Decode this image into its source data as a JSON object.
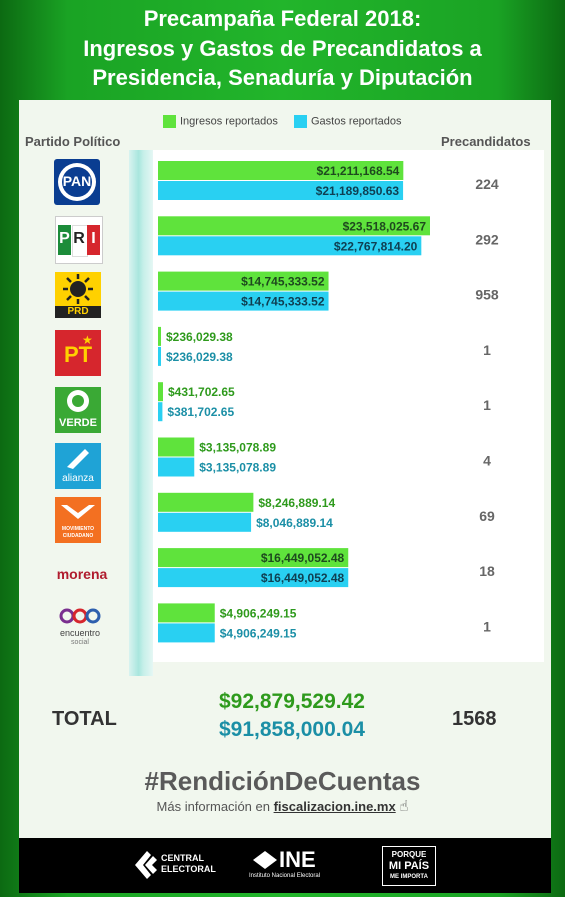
{
  "header": {
    "line1": "Precampaña Federal 2018:",
    "line2": "Ingresos y Gastos de Precandidatos a",
    "line3": "Presidencia, Senaduría y Diputación"
  },
  "legend": {
    "ingresos": "Ingresos reportados",
    "gastos": "Gastos reportados"
  },
  "columns": {
    "party": "Partido Político",
    "candidates": "Precandidatos"
  },
  "colors": {
    "ingresos": "#5fe33c",
    "gastos": "#29d0f2",
    "ingresos_text": "#2e9a1c",
    "gastos_text": "#1b8fa6"
  },
  "chart_data": {
    "type": "bar",
    "orientation": "horizontal",
    "categories": [
      "PAN",
      "PRI",
      "PRD",
      "PT",
      "VERDE",
      "alianza",
      "MOVIMIENTO CIUDADANO",
      "morena",
      "encuentro social"
    ],
    "series": [
      {
        "name": "Ingresos reportados",
        "values": [
          21211168.54,
          23518025.67,
          14745333.52,
          236029.38,
          431702.65,
          3135078.89,
          8246889.14,
          16449052.48,
          4906249.15
        ],
        "labels": [
          "$21,211,168.54",
          "$23,518,025.67",
          "$14,745,333.52",
          "$236,029.38",
          "$431,702.65",
          "$3,135,078.89",
          "$8,246,889.14",
          "$16,449,052.48",
          "$4,906,249.15"
        ]
      },
      {
        "name": "Gastos reportados",
        "values": [
          21189850.63,
          22767814.2,
          14745333.52,
          236029.38,
          381702.65,
          3135078.89,
          8046889.14,
          16449052.48,
          4906249.15
        ],
        "labels": [
          "$21,189,850.63",
          "$22,767,814.20",
          "$14,745,333.52",
          "$236,029.38",
          "$381,702.65",
          "$3,135,078.89",
          "$8,046,889.14",
          "$16,449,052.48",
          "$4,906,249.15"
        ]
      }
    ],
    "precandidatos": [
      "224",
      "292",
      "958",
      "1",
      "1",
      "4",
      "69",
      "18",
      "1"
    ],
    "xlim": [
      0,
      23518025.67
    ],
    "grid": false
  },
  "logos": {
    "pan": "PAN",
    "pri_p": "P",
    "pri_r": "R",
    "pri_i": "I",
    "prd": "PRD",
    "pt": "PT",
    "verde": "VERDE",
    "alianza": "alianza",
    "mc1": "MOVIMIENTO",
    "mc2": "CIUDADANO",
    "morena": "morena",
    "es1": "encuentro",
    "es2": "social"
  },
  "totals": {
    "label": "TOTAL",
    "ingresos": "$92,879,529.42",
    "gastos": "$91,858,000.04",
    "precandidatos": "1568"
  },
  "hashtag": "#RendiciónDeCuentas",
  "info": {
    "prefix": "Más información en ",
    "link": "fiscalizacion.ine.mx"
  },
  "footer": {
    "central1": "CENTRAL",
    "central2": "ELECTORAL",
    "ine": "INE",
    "ine_sub": "Instituto Nacional Electoral",
    "pm1": "PORQUE",
    "pm2": "MI PAÍS",
    "pm3": "ME IMPORTA"
  }
}
